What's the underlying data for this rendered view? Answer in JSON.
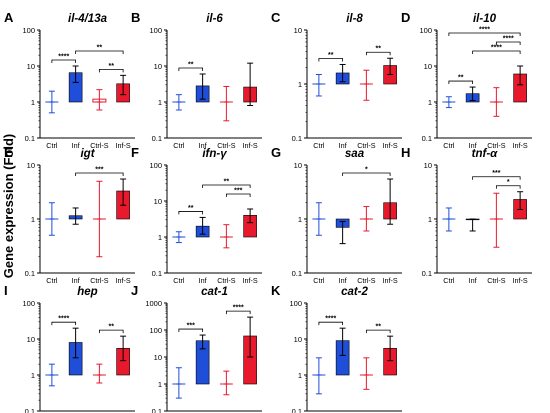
{
  "ylabel": "Gene expression (Fold)",
  "colors": {
    "ctrl": "#1f4fd8",
    "inf": "#1f4fd8",
    "ctrls": "#e8192c",
    "infs": "#e8192c",
    "axis": "#000000"
  },
  "chart_data": [
    {
      "type": "bar",
      "panel": "A",
      "title": "il-4/13a",
      "categories": [
        "Ctrl",
        "Inf",
        "Ctrl-S",
        "Inf-S"
      ],
      "values": [
        1,
        6.5,
        1.2,
        3.2
      ],
      "errors": [
        [
          0.5,
          2
        ],
        [
          3.5,
          10
        ],
        [
          0.6,
          2.2
        ],
        [
          1.6,
          5.5
        ]
      ],
      "ylim": [
        0.1,
        100
      ],
      "log": true,
      "yticks": [
        "0.1",
        "1",
        "10",
        "100"
      ],
      "signif": [
        {
          "from": 0,
          "to": 1,
          "label": "****",
          "level": 0
        },
        {
          "from": 1,
          "to": 3,
          "label": "**",
          "level": 1
        },
        {
          "from": 2,
          "to": 3,
          "label": "**",
          "level": 0
        }
      ]
    },
    {
      "type": "bar",
      "panel": "B",
      "title": "il-6",
      "categories": [
        "Ctrl",
        "Inf",
        "Ctrl-S",
        "Inf-S"
      ],
      "values": [
        1,
        2.8,
        1,
        2.6
      ],
      "errors": [
        [
          0.6,
          1.6
        ],
        [
          1.2,
          6
        ],
        [
          0.3,
          2.7
        ],
        [
          0.8,
          12
        ]
      ],
      "ylim": [
        0.1,
        100
      ],
      "log": true,
      "yticks": [
        "0.1",
        "1",
        "10",
        "100"
      ],
      "signif": [
        {
          "from": 0,
          "to": 1,
          "label": "**",
          "level": 0
        }
      ]
    },
    {
      "type": "bar",
      "panel": "C",
      "title": "il-8",
      "categories": [
        "Ctrl",
        "Inf",
        "Ctrl-S",
        "Inf-S"
      ],
      "values": [
        1,
        1.6,
        1,
        2.2
      ],
      "errors": [
        [
          0.6,
          1.5
        ],
        [
          1.1,
          2.3
        ],
        [
          0.5,
          1.8
        ],
        [
          1.5,
          3
        ]
      ],
      "ylim": [
        0.1,
        10
      ],
      "log": true,
      "yticks": [
        "0.1",
        "1",
        "10"
      ],
      "signif": [
        {
          "from": 0,
          "to": 1,
          "label": "**",
          "level": 0
        },
        {
          "from": 2,
          "to": 3,
          "label": "**",
          "level": 0
        }
      ]
    },
    {
      "type": "bar",
      "panel": "D",
      "title": "il-10",
      "categories": [
        "Ctrl",
        "Inf",
        "Ctrl-S",
        "Inf-S"
      ],
      "values": [
        1,
        1.7,
        1,
        6
      ],
      "errors": [
        [
          0.7,
          1.4
        ],
        [
          1.1,
          2.6
        ],
        [
          0.4,
          2.5
        ],
        [
          3,
          10
        ]
      ],
      "ylim": [
        0.1,
        100
      ],
      "log": true,
      "yticks": [
        "0.1",
        "1",
        "10",
        "100"
      ],
      "signif": [
        {
          "from": 0,
          "to": 1,
          "label": "**",
          "level": 0
        },
        {
          "from": 1,
          "to": 3,
          "label": "****",
          "level": 1
        },
        {
          "from": 2,
          "to": 3,
          "label": "****",
          "level": 2
        },
        {
          "from": 0,
          "to": 3,
          "label": "****",
          "level": 3
        }
      ]
    },
    {
      "type": "bar",
      "panel": "E",
      "title": "igt",
      "categories": [
        "Ctrl",
        "Inf",
        "Ctrl-S",
        "Inf-S"
      ],
      "values": [
        1,
        1.15,
        1,
        3.3
      ],
      "errors": [
        [
          0.5,
          2
        ],
        [
          0.8,
          1.6
        ],
        [
          0.2,
          5
        ],
        [
          1.8,
          5.5
        ]
      ],
      "ylim": [
        0.1,
        10
      ],
      "log": true,
      "yticks": [
        "0.1",
        "1",
        "10"
      ],
      "signif": [
        {
          "from": 1,
          "to": 3,
          "label": "***",
          "level": 0
        }
      ]
    },
    {
      "type": "bar",
      "panel": "F",
      "title": "ifn-γ",
      "categories": [
        "Ctrl",
        "Inf",
        "Ctrl-S",
        "Inf-S"
      ],
      "values": [
        1,
        2,
        1,
        4
      ],
      "errors": [
        [
          0.7,
          1.4
        ],
        [
          1.2,
          3.5
        ],
        [
          0.5,
          2.2
        ],
        [
          2.5,
          6
        ]
      ],
      "ylim": [
        0.1,
        100
      ],
      "log": true,
      "yticks": [
        "0.1",
        "1",
        "10",
        "100"
      ],
      "signif": [
        {
          "from": 0,
          "to": 1,
          "label": "**",
          "level": 0
        },
        {
          "from": 1,
          "to": 3,
          "label": "**",
          "level": 2
        },
        {
          "from": 2,
          "to": 3,
          "label": "***",
          "level": 1
        }
      ]
    },
    {
      "type": "bar",
      "panel": "G",
      "title": "saa",
      "categories": [
        "Ctrl",
        "Inf",
        "Ctrl-S",
        "Inf-S"
      ],
      "values": [
        1,
        0.7,
        1,
        2
      ],
      "errors": [
        [
          0.5,
          2
        ],
        [
          0.35,
          0.9
        ],
        [
          0.6,
          1.7
        ],
        [
          0.8,
          5.5
        ]
      ],
      "ylim": [
        0.1,
        10
      ],
      "log": true,
      "yticks": [
        "0.1",
        "1",
        "10"
      ],
      "signif": [
        {
          "from": 1,
          "to": 3,
          "label": "*",
          "level": 0
        }
      ]
    },
    {
      "type": "bar",
      "panel": "H",
      "title": "tnf-α",
      "categories": [
        "Ctrl",
        "Inf",
        "Ctrl-S",
        "Inf-S"
      ],
      "values": [
        1,
        1,
        1,
        2.3
      ],
      "errors": [
        [
          0.6,
          1.6
        ],
        [
          0.6,
          1
        ],
        [
          0.3,
          3
        ],
        [
          1.5,
          3.2
        ]
      ],
      "ylim": [
        0.1,
        10
      ],
      "log": true,
      "yticks": [
        "0.1",
        "1",
        "10"
      ],
      "signif": [
        {
          "from": 1,
          "to": 3,
          "label": "***",
          "level": 1
        },
        {
          "from": 2,
          "to": 3,
          "label": "*",
          "level": 0
        }
      ]
    },
    {
      "type": "bar",
      "panel": "I",
      "title": "hep",
      "categories": [
        "Ctrl",
        "Inf",
        "Ctrl-S",
        "Inf-S"
      ],
      "values": [
        1,
        8,
        1,
        5.5
      ],
      "errors": [
        [
          0.5,
          2
        ],
        [
          3,
          20
        ],
        [
          0.6,
          2
        ],
        [
          2.5,
          12
        ]
      ],
      "ylim": [
        0.1,
        100
      ],
      "log": true,
      "yticks": [
        "0.1",
        "1",
        "10",
        "100"
      ],
      "signif": [
        {
          "from": 0,
          "to": 1,
          "label": "****",
          "level": 0
        },
        {
          "from": 2,
          "to": 3,
          "label": "**",
          "level": 0
        }
      ]
    },
    {
      "type": "bar",
      "panel": "J",
      "title": "cat-1",
      "categories": [
        "Ctrl",
        "Inf",
        "Ctrl-S",
        "Inf-S"
      ],
      "values": [
        1,
        40,
        1,
        60
      ],
      "errors": [
        [
          0.3,
          4
        ],
        [
          20,
          65
        ],
        [
          0.4,
          3
        ],
        [
          10,
          300
        ]
      ],
      "ylim": [
        0.1,
        1000
      ],
      "log": true,
      "yticks": [
        "0.1",
        "1",
        "10",
        "100",
        "1000"
      ],
      "signif": [
        {
          "from": 0,
          "to": 1,
          "label": "***",
          "level": 0
        },
        {
          "from": 2,
          "to": 3,
          "label": "****",
          "level": 0
        }
      ]
    },
    {
      "type": "bar",
      "panel": "K",
      "title": "cat-2",
      "categories": [
        "Ctrl",
        "Inf",
        "Ctrl-S",
        "Inf-S"
      ],
      "values": [
        1,
        9,
        1,
        5.5
      ],
      "errors": [
        [
          0.3,
          3
        ],
        [
          3.5,
          20
        ],
        [
          0.4,
          3
        ],
        [
          2.5,
          12
        ]
      ],
      "ylim": [
        0.1,
        100
      ],
      "log": true,
      "yticks": [
        "0.1",
        "1",
        "10",
        "100"
      ],
      "signif": [
        {
          "from": 0,
          "to": 1,
          "label": "****",
          "level": 0
        },
        {
          "from": 2,
          "to": 3,
          "label": "**",
          "level": 0
        }
      ]
    }
  ]
}
